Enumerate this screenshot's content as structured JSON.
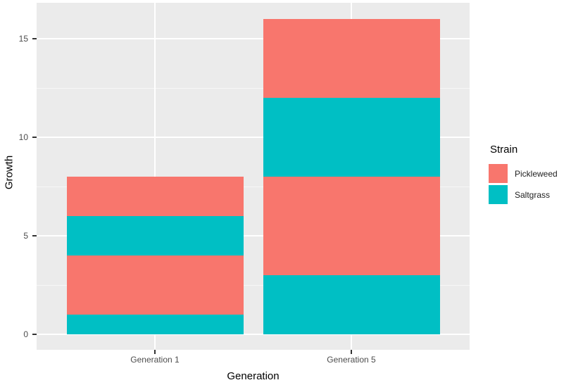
{
  "chart_data": {
    "type": "bar",
    "stacked": true,
    "title": "",
    "xlabel": "Generation",
    "ylabel": "Growth",
    "legend_title": "Strain",
    "legend_position": "right",
    "ylim": [
      0,
      16
    ],
    "y_ticks": [
      0,
      5,
      10,
      15
    ],
    "y_minor_ticks": [
      2.5,
      7.5,
      12.5
    ],
    "grid": true,
    "categories": [
      "Generation 1",
      "Generation 5"
    ],
    "bars": [
      {
        "category": "Generation 1",
        "total": 8,
        "segments": [
          {
            "strain": "Saltgrass",
            "value": 1
          },
          {
            "strain": "Pickleweed",
            "value": 3
          },
          {
            "strain": "Saltgrass",
            "value": 2
          },
          {
            "strain": "Pickleweed",
            "value": 2
          }
        ]
      },
      {
        "category": "Generation 5",
        "total": 16,
        "segments": [
          {
            "strain": "Saltgrass",
            "value": 3
          },
          {
            "strain": "Pickleweed",
            "value": 5
          },
          {
            "strain": "Saltgrass",
            "value": 4
          },
          {
            "strain": "Pickleweed",
            "value": 4
          }
        ]
      }
    ],
    "legend": [
      {
        "label": "Pickleweed",
        "color": "#F8766D"
      },
      {
        "label": "Saltgrass",
        "color": "#00BFC4"
      }
    ],
    "colors": {
      "pickleweed": "#F8766D",
      "saltgrass": "#00BFC4",
      "panel_background": "#EBEBEB",
      "gridline_major": "#FFFFFF",
      "tick_label": "#4D4D4D",
      "axis_title": "#000000",
      "tick_mark": "#333333"
    }
  }
}
